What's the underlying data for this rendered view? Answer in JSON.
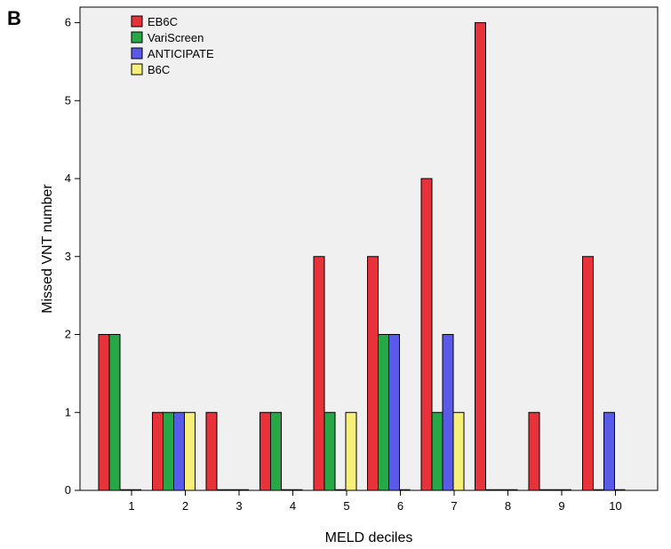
{
  "panel_label": "B",
  "chart_data": {
    "type": "bar",
    "title": "",
    "xlabel": "MELD deciles",
    "ylabel": "Missed VNT number",
    "categories": [
      "1",
      "2",
      "3",
      "4",
      "5",
      "6",
      "7",
      "8",
      "9",
      "10"
    ],
    "ylim": [
      0,
      6.2
    ],
    "yticks": [
      0,
      1,
      2,
      3,
      4,
      5,
      6
    ],
    "grid": false,
    "legend_position": "top-left",
    "plot_background": "#f0f0f0",
    "series": [
      {
        "name": "EB6C",
        "color": "#e8323a",
        "values": [
          2,
          1,
          1,
          1,
          3,
          3,
          4,
          6,
          1,
          3
        ]
      },
      {
        "name": "VariScreen",
        "color": "#27a846",
        "values": [
          2,
          1,
          0,
          1,
          1,
          2,
          1,
          0,
          0,
          0
        ]
      },
      {
        "name": "ANTICIPATE",
        "color": "#5a5ae8",
        "values": [
          0,
          1,
          0,
          0,
          0,
          2,
          2,
          0,
          0,
          1
        ]
      },
      {
        "name": "B6C",
        "color": "#f6f07a",
        "values": [
          0,
          1,
          0,
          0,
          1,
          0,
          1,
          0,
          0,
          0
        ]
      }
    ]
  }
}
